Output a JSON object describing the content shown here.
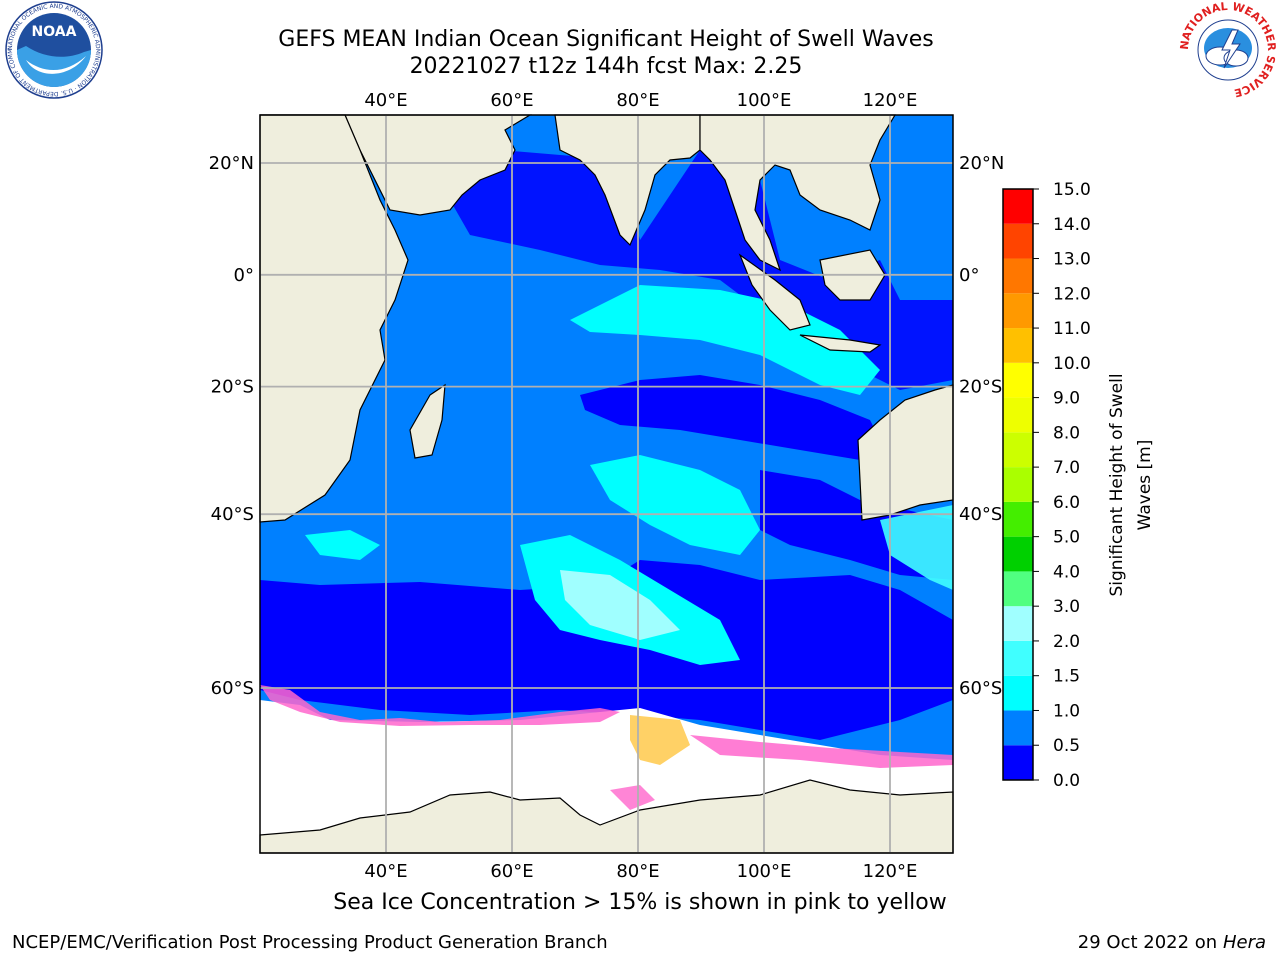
{
  "title_line1": "GEFS MEAN Indian Ocean Significant Height of Swell Waves",
  "title_line2": "20221027 t12z 144h fcst   Max: 2.25",
  "logos": {
    "left": {
      "icon": "noaa-logo",
      "text": "NOAA",
      "ring_text": "NATIONAL OCEANIC AND ATMOSPHERIC ADMINISTRATION · U.S. DEPARTMENT OF COMMERCE"
    },
    "right": {
      "icon": "national-weather-service-logo",
      "ring_text": "NATIONAL WEATHER SERVICE"
    }
  },
  "map": {
    "lon_labels": [
      "40°E",
      "60°E",
      "80°E",
      "100°E",
      "120°E"
    ],
    "lat_labels": [
      "20°N",
      "0°",
      "20°S",
      "40°S",
      "60°S"
    ],
    "lon_values": [
      40,
      60,
      80,
      100,
      120
    ],
    "lat_values": [
      20,
      0,
      -20,
      -40,
      -60
    ],
    "extent": {
      "lon": [
        20,
        130
      ],
      "lat": [
        -72,
        28
      ]
    },
    "colors": {
      "land": "#efeedd",
      "ice_pink": "#ff66cc",
      "ice_yellow": "#ffcc55",
      "grid": "#b0b0b0"
    }
  },
  "colorbar": {
    "label_line1": "Significant Height of Swell",
    "label_line2": "Waves [m]",
    "ticks": [
      "0.0",
      "0.5",
      "1.0",
      "1.5",
      "2.0",
      "3.0",
      "4.0",
      "5.0",
      "6.0",
      "7.0",
      "8.0",
      "9.0",
      "10.0",
      "11.0",
      "12.0",
      "13.0",
      "14.0",
      "15.0"
    ],
    "colors": [
      "#0000ff",
      "#0080ff",
      "#00ffff",
      "#40ffff",
      "#a0ffff",
      "#50ff80",
      "#00d000",
      "#44ee00",
      "#aaff00",
      "#ccff00",
      "#eeff00",
      "#ffff00",
      "#ffc000",
      "#ff9900",
      "#ff7700",
      "#ff4400",
      "#ff0000"
    ]
  },
  "caption": "Sea Ice Concentration > 15% is shown in pink to yellow",
  "footer_left": "NCEP/EMC/Verification Post Processing Product Generation Branch",
  "footer_right_prefix": "29 Oct 2022 on ",
  "footer_right_host": "Hera"
}
